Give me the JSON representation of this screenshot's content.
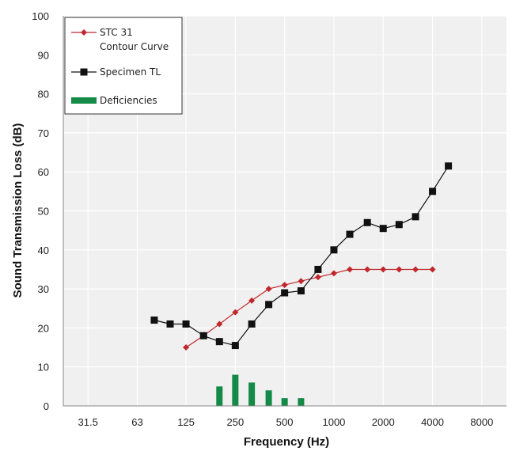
{
  "chart_data": {
    "type": "line",
    "title": "",
    "xlabel": "Frequency (Hz)",
    "ylabel": "Sound Transmission Loss (dB)",
    "ylim": [
      0,
      100
    ],
    "yticks": [
      "0",
      "10",
      "20",
      "30",
      "40",
      "50",
      "60",
      "70",
      "80",
      "90",
      "100"
    ],
    "xscale": "log",
    "xlim_hz": [
      22.27,
      11314
    ],
    "xticks": [
      {
        "label": "31.5",
        "hz": 31.5
      },
      {
        "label": "63",
        "hz": 63
      },
      {
        "label": "125",
        "hz": 125
      },
      {
        "label": "250",
        "hz": 250
      },
      {
        "label": "500",
        "hz": 500
      },
      {
        "label": "1000",
        "hz": 1000
      },
      {
        "label": "2000",
        "hz": 2000
      },
      {
        "label": "4000",
        "hz": 4000
      },
      {
        "label": "8000",
        "hz": 8000
      }
    ],
    "grid": true,
    "legend_position": "top-left",
    "series": [
      {
        "name": "STC 31\nContour Curve",
        "label_lines": [
          "STC 31",
          "Contour Curve"
        ],
        "color": "#c0282d",
        "marker": "diamond",
        "x": [
          125,
          160,
          200,
          250,
          315,
          400,
          500,
          630,
          800,
          1000,
          1250,
          1600,
          2000,
          2500,
          3150,
          4000
        ],
        "y": [
          15,
          18,
          21,
          24,
          27,
          30,
          31,
          32,
          33,
          34,
          35,
          35,
          35,
          35,
          35,
          35
        ]
      },
      {
        "name": "Specimen TL",
        "label_lines": [
          "Specimen TL"
        ],
        "color": "#111111",
        "marker": "square",
        "x": [
          80,
          100,
          125,
          160,
          200,
          250,
          315,
          400,
          500,
          630,
          800,
          1000,
          1250,
          1600,
          2000,
          2500,
          3150,
          4000,
          5000
        ],
        "y": [
          22,
          21,
          21,
          18,
          16.5,
          15.5,
          21,
          26,
          29,
          29.5,
          35,
          40,
          44,
          47,
          45.5,
          46.5,
          48.5,
          55,
          61.5
        ]
      },
      {
        "name": "Deficiencies",
        "label_lines": [
          "Deficiencies"
        ],
        "color": "#138a45",
        "marker": "bar",
        "x": [
          200,
          250,
          315,
          400,
          500,
          630
        ],
        "y": [
          5,
          8,
          6,
          4,
          2,
          2
        ]
      }
    ]
  }
}
